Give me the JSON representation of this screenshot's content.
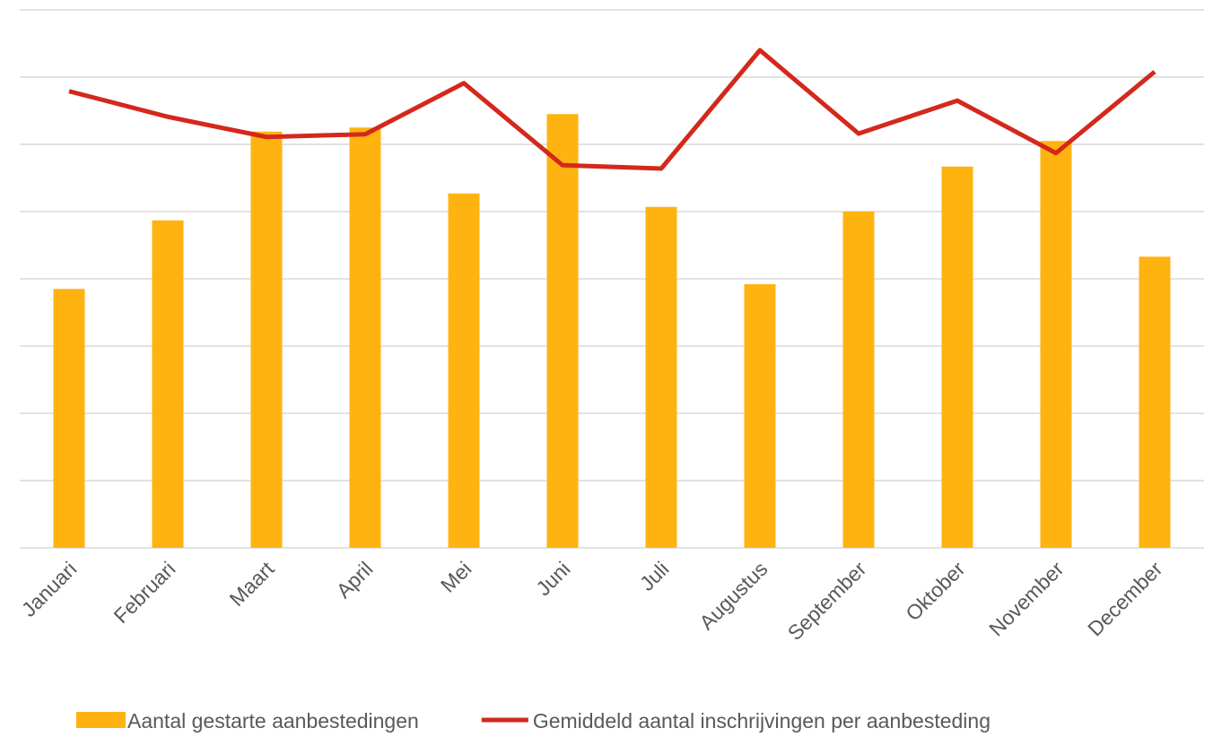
{
  "chart_data": {
    "type": "bar_line",
    "categories": [
      "Januari",
      "Februari",
      "Maart",
      "April",
      "Mei",
      "Juni",
      "Juli",
      "Augustus",
      "September",
      "Oktober",
      "November",
      "December"
    ],
    "series": [
      {
        "name": "Aantal gestarte aanbestedingen",
        "type": "bar",
        "color": "#FFB311",
        "values": [
          3.85,
          4.87,
          6.19,
          6.25,
          5.27,
          6.45,
          5.07,
          3.92,
          5.0,
          5.67,
          6.05,
          4.33
        ]
      },
      {
        "name": "Gemiddeld aantal inschrijvingen per aanbesteding",
        "type": "line",
        "color": "#D4281C",
        "values": [
          6.79,
          6.41,
          6.11,
          6.15,
          6.91,
          5.69,
          5.64,
          7.4,
          6.16,
          6.65,
          5.87,
          7.08
        ]
      }
    ],
    "ylim": [
      0,
      8
    ],
    "yticks": [
      0,
      1,
      2,
      3,
      4,
      5,
      6,
      7,
      8
    ],
    "grid": true,
    "legend": "bottom"
  }
}
